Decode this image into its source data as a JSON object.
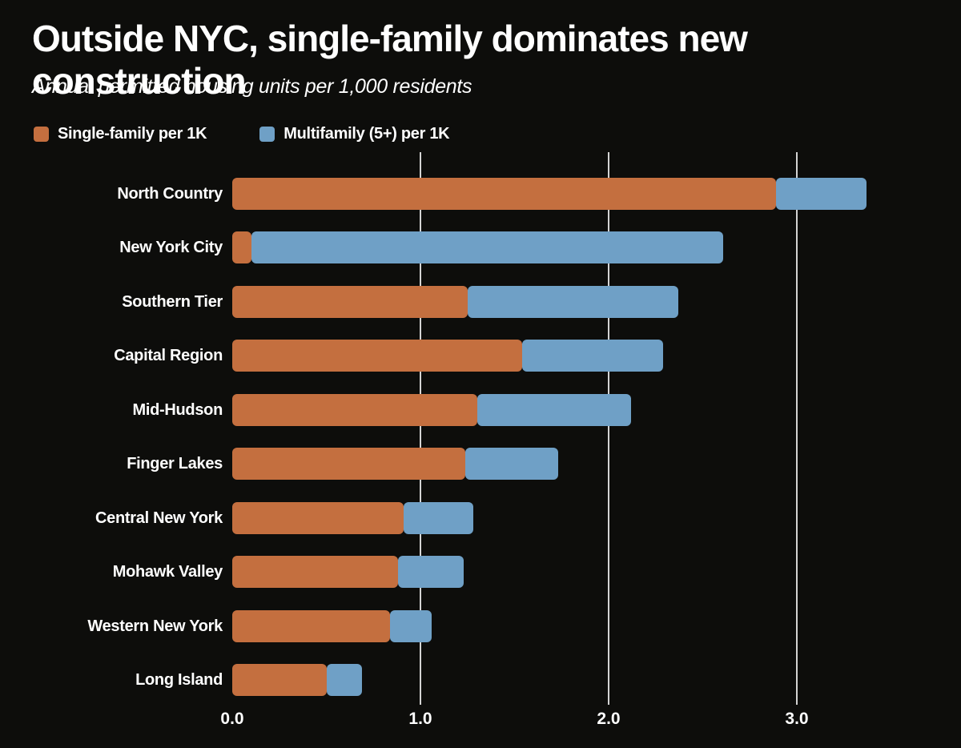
{
  "title": "Outside NYC, single-family dominates new construction",
  "subtitle": "Annual permitted housing units per 1,000 residents",
  "colors": {
    "background": "#0d0d0b",
    "text": "#ffffff",
    "gridline": "#d9d9d9",
    "single_family": "#c46f3f",
    "multifamily": "#6fa0c6"
  },
  "legend": {
    "items": [
      {
        "label": "Single-family per 1K",
        "color": "#c46f3f"
      },
      {
        "label": "Multifamily (5+) per 1K",
        "color": "#6fa0c6"
      }
    ]
  },
  "chart_data": {
    "type": "bar",
    "orientation": "horizontal",
    "stacked": true,
    "title": "Outside NYC, single-family dominates new construction",
    "subtitle": "Annual permitted housing units per 1,000 residents",
    "categories": [
      "North Country",
      "New York City",
      "Southern Tier",
      "Capital Region",
      "Mid-Hudson",
      "Finger Lakes",
      "Central New York",
      "Mohawk Valley",
      "Western New York",
      "Long Island"
    ],
    "series": [
      {
        "name": "Single-family per 1K",
        "color": "#c46f3f",
        "values": [
          2.89,
          0.1,
          1.25,
          1.54,
          1.3,
          1.24,
          0.91,
          0.88,
          0.84,
          0.5
        ]
      },
      {
        "name": "Multifamily (5+) per 1K",
        "color": "#6fa0c6",
        "values": [
          0.48,
          2.51,
          1.12,
          0.75,
          0.82,
          0.49,
          0.37,
          0.35,
          0.22,
          0.19
        ]
      }
    ],
    "totals": [
      3.37,
      2.61,
      2.37,
      2.29,
      2.12,
      1.73,
      1.28,
      1.23,
      1.06,
      0.69
    ],
    "xlabel": "",
    "ylabel": "",
    "xlim": [
      0,
      3.53
    ],
    "xticks": [
      "0.0",
      "1.0",
      "2.0",
      "3.0"
    ],
    "xtick_values": [
      0,
      1,
      2,
      3
    ],
    "grid": "vertical gridlines at 1.0, 2.0 and 3.0 only",
    "legend_position": "top-left"
  }
}
